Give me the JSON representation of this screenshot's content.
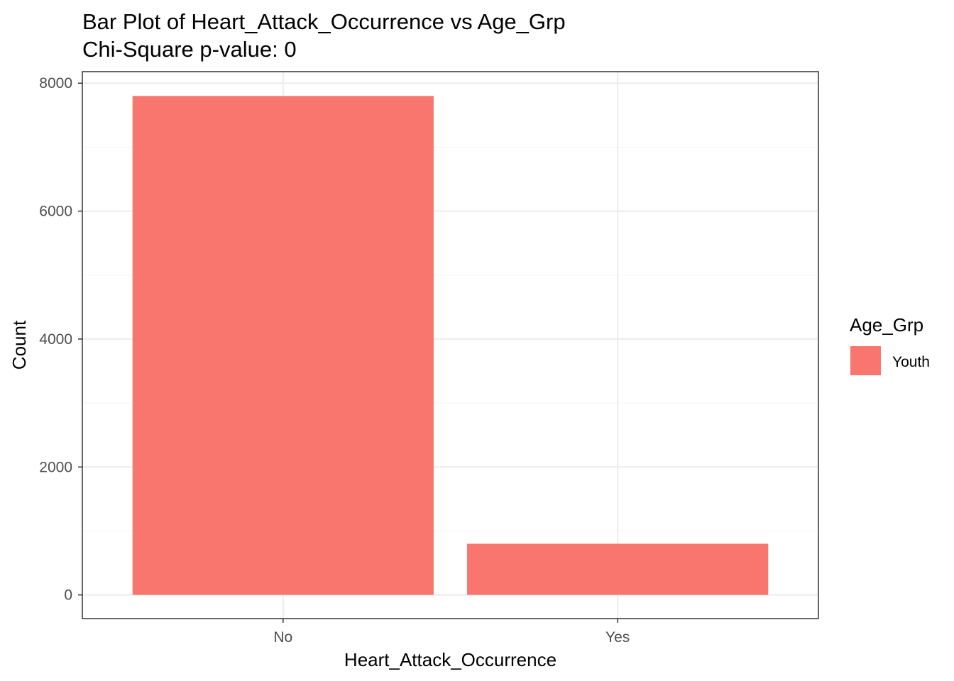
{
  "chart_data": {
    "type": "bar",
    "title": "Bar Plot of Heart_Attack_Occurrence vs Age_Grp",
    "subtitle": "Chi-Square p-value: 0",
    "xlabel": "Heart_Attack_Occurrence",
    "ylabel": "Count",
    "categories": [
      "No",
      "Yes"
    ],
    "series": [
      {
        "name": "Youth",
        "values": [
          7800,
          800
        ],
        "color": "#F8766D"
      }
    ],
    "ylim": [
      -370,
      8180
    ],
    "yticks": [
      0,
      2000,
      4000,
      6000,
      8000
    ],
    "ytick_labels": [
      "0",
      "2000",
      "4000",
      "6000",
      "8000"
    ],
    "grid": true,
    "legend": {
      "title": "Age_Grp",
      "position": "right",
      "entries": [
        "Youth"
      ]
    },
    "colors": {
      "bar": "#F8766D",
      "grid_major": "#ebebeb",
      "grid_minor": "#f5f5f5",
      "panel_border": "#333333",
      "tick_text": "#4d4d4d"
    }
  }
}
